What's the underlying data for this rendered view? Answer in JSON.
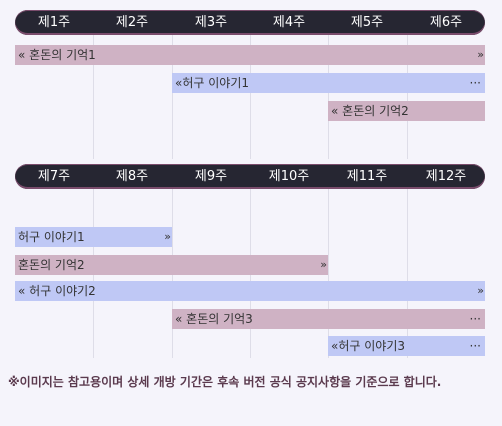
{
  "timeline1": {
    "weeks": [
      "제1주",
      "제2주",
      "제3주",
      "제4주",
      "제5주",
      "제6주"
    ],
    "bars": [
      {
        "label": "혼돈의 기억1",
        "start": "«",
        "end": "»"
      },
      {
        "label": "허구 이야기1",
        "start": "«",
        "end": "···"
      },
      {
        "label": "혼돈의 기억2",
        "start": "«",
        "end": ""
      }
    ]
  },
  "timeline2": {
    "weeks": [
      "제7주",
      "제8주",
      "제9주",
      "제10주",
      "제11주",
      "제12주"
    ],
    "bars": [
      {
        "label": "허구 이야기1",
        "start": "",
        "end": "»"
      },
      {
        "label": "혼돈의 기억2",
        "start": "",
        "end": "»"
      },
      {
        "label": "허구 이야기2",
        "start": "«",
        "end": "»"
      },
      {
        "label": "혼돈의 기억3",
        "start": "«",
        "end": "···"
      },
      {
        "label": "허구 이야기3",
        "start": "«",
        "end": "···"
      }
    ]
  },
  "note": "※이미지는 참고용이며 상세 개방 기간은 후속 버전 공식 공지사항을 기준으로 합니다.",
  "colors": {
    "header": "#262632",
    "chaos_bar": "#cfb2c4",
    "story_bar": "#bfc8f5",
    "note_text": "#5b3a4e"
  }
}
